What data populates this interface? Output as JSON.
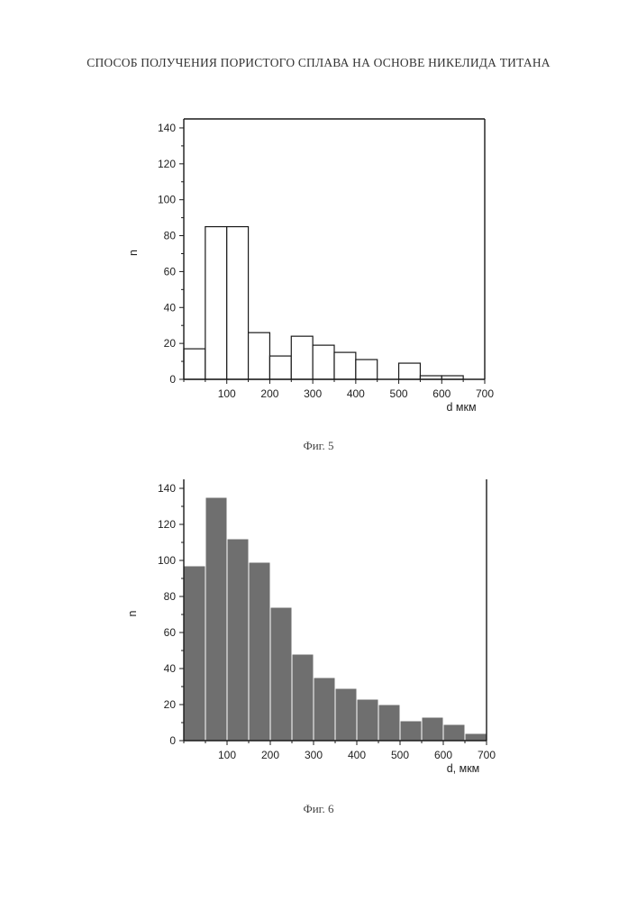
{
  "header": {
    "title": "СПОСОБ ПОЛУЧЕНИЯ ПОРИСТОГО СПЛАВА НА ОСНОВЕ НИКЕЛИДА ТИТАНА"
  },
  "figures": [
    {
      "caption": "Фиг. 5",
      "fill": "#ffffff",
      "stroke": "#1a1a1a",
      "frame_style": "closed"
    },
    {
      "caption": "Фиг. 6",
      "fill": "#6f6f6f",
      "stroke": "#ffffff",
      "frame_style": "open"
    }
  ],
  "chart_data": [
    {
      "type": "bar",
      "subtype": "histogram",
      "xlabel": "d  мкм",
      "ylabel": "n",
      "xlim": [
        0,
        700
      ],
      "ylim": [
        0,
        145
      ],
      "xticks": [
        100,
        200,
        300,
        400,
        500,
        600,
        700
      ],
      "yticks": [
        0,
        20,
        40,
        60,
        80,
        100,
        120,
        140
      ],
      "bins": [
        {
          "x0": 0,
          "x1": 50,
          "value": 17
        },
        {
          "x0": 50,
          "x1": 100,
          "value": 85
        },
        {
          "x0": 100,
          "x1": 150,
          "value": 85
        },
        {
          "x0": 150,
          "x1": 200,
          "value": 26
        },
        {
          "x0": 200,
          "x1": 250,
          "value": 13
        },
        {
          "x0": 250,
          "x1": 300,
          "value": 24
        },
        {
          "x0": 300,
          "x1": 350,
          "value": 19
        },
        {
          "x0": 350,
          "x1": 400,
          "value": 15
        },
        {
          "x0": 400,
          "x1": 450,
          "value": 11
        },
        {
          "x0": 450,
          "x1": 500,
          "value": 0
        },
        {
          "x0": 500,
          "x1": 550,
          "value": 9
        },
        {
          "x0": 550,
          "x1": 600,
          "value": 2
        },
        {
          "x0": 600,
          "x1": 650,
          "value": 2
        }
      ],
      "grid": false
    },
    {
      "type": "bar",
      "subtype": "histogram",
      "xlabel": "d, мкм",
      "ylabel": "n",
      "xlim": [
        0,
        700
      ],
      "ylim": [
        0,
        145
      ],
      "xticks": [
        100,
        200,
        300,
        400,
        500,
        600,
        700
      ],
      "yticks": [
        0,
        20,
        40,
        60,
        80,
        100,
        120,
        140
      ],
      "bins": [
        {
          "x0": 0,
          "x1": 50,
          "value": 97
        },
        {
          "x0": 50,
          "x1": 100,
          "value": 135
        },
        {
          "x0": 100,
          "x1": 150,
          "value": 112
        },
        {
          "x0": 150,
          "x1": 200,
          "value": 99
        },
        {
          "x0": 200,
          "x1": 250,
          "value": 74
        },
        {
          "x0": 250,
          "x1": 300,
          "value": 48
        },
        {
          "x0": 300,
          "x1": 350,
          "value": 35
        },
        {
          "x0": 350,
          "x1": 400,
          "value": 29
        },
        {
          "x0": 400,
          "x1": 450,
          "value": 23
        },
        {
          "x0": 450,
          "x1": 500,
          "value": 20
        },
        {
          "x0": 500,
          "x1": 550,
          "value": 11
        },
        {
          "x0": 550,
          "x1": 600,
          "value": 13
        },
        {
          "x0": 600,
          "x1": 650,
          "value": 9
        },
        {
          "x0": 650,
          "x1": 700,
          "value": 4
        }
      ],
      "grid": false
    }
  ]
}
